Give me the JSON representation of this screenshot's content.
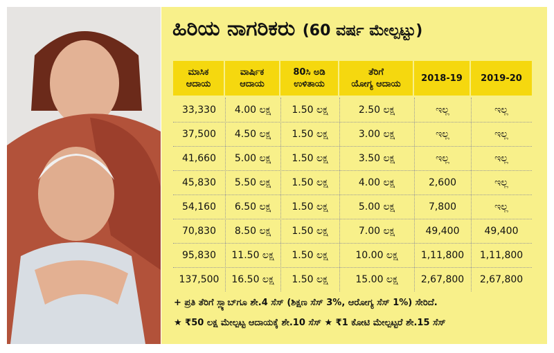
{
  "title": "ಹಿರಿಯ ನಾಗರಿಕರು",
  "subtitle": "(60 ವರ್ಷ ಮೇಲ್ಪಟ್ಟು)",
  "table": {
    "header": [
      [
        "ಮಾಸಿಕ",
        "ಆದಾಯ"
      ],
      [
        "ವಾರ್ಷಿಕ",
        "ಆದಾಯ"
      ],
      [
        "80ಸಿ ಅಡಿ",
        "ಉಳಿತಾಯ"
      ],
      [
        "ತೆರಿಗೆ",
        "ಯೋಗ್ಯ ಆದಾಯ"
      ],
      [
        "2018-19"
      ],
      [
        "2019-20"
      ]
    ],
    "rows": [
      [
        "33,330",
        "4.00 ಲಕ್ಷ",
        "1.50 ಲಕ್ಷ",
        "2.50 ಲಕ್ಷ",
        "ಇಲ್ಲ",
        "ಇಲ್ಲ"
      ],
      [
        "37,500",
        "4.50 ಲಕ್ಷ",
        "1.50 ಲಕ್ಷ",
        "3.00 ಲಕ್ಷ",
        "ಇಲ್ಲ",
        "ಇಲ್ಲ"
      ],
      [
        "41,660",
        "5.00 ಲಕ್ಷ",
        "1.50 ಲಕ್ಷ",
        "3.50 ಲಕ್ಷ",
        "ಇಲ್ಲ",
        "ಇಲ್ಲ"
      ],
      [
        "45,830",
        "5.50 ಲಕ್ಷ",
        "1.50 ಲಕ್ಷ",
        "4.00 ಲಕ್ಷ",
        "2,600",
        "ಇಲ್ಲ"
      ],
      [
        "54,160",
        "6.50 ಲಕ್ಷ",
        "1.50 ಲಕ್ಷ",
        "5.00 ಲಕ್ಷ",
        "7,800",
        "ಇಲ್ಲ"
      ],
      [
        "70,830",
        "8.50 ಲಕ್ಷ",
        "1.50 ಲಕ್ಷ",
        "7.00 ಲಕ್ಷ",
        "49,400",
        "49,400"
      ],
      [
        "95,830",
        "11.50 ಲಕ್ಷ",
        "1.50 ಲಕ್ಷ",
        "10.00 ಲಕ್ಷ",
        "1,11,800",
        "1,11,800"
      ],
      [
        "137,500",
        "16.50 ಲಕ್ಷ",
        "1.50 ಲಕ್ಷ",
        "15.00 ಲಕ್ಷ",
        "2,67,800",
        "2,67,800"
      ]
    ]
  },
  "notes": [
    "+ ಪ್ರತಿ ತೆರಿಗೆ ಸ್ಲ್ಯಾಬ್‌ಗೂ ಶೇ.4 ಸೆಸ್ (ಶಿಕ್ಷಣ ಸೆಸ್ 3%, ಆರೋಗ್ಯ ಸೆಸ್ 1%) ಸೇರಿದೆ.",
    "★ ₹50 ಲಕ್ಷ ಮೇಲ್ಪಟ್ಟ ಆದಾಯಕ್ಕೆ ಶೇ.10 ಸೆಸ್ ★ ₹1 ಕೋಟಿ ಮೇಲ್ಪಟ್ಟರೆ ಶೇ.15 ಸೆಸ್"
  ]
}
